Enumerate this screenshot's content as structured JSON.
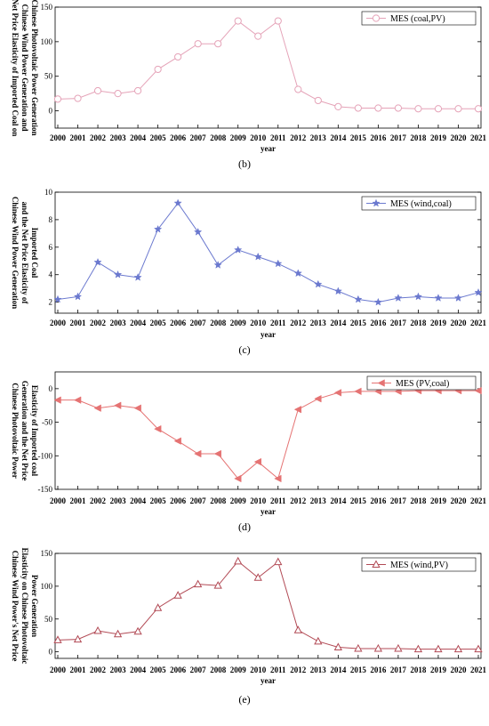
{
  "chart_data": [
    {
      "type": "line",
      "caption": "",
      "ylabel_lines": [
        "Net Price Elasticity of Imported Coal on",
        "Chinese Wind Power Generation and",
        "Chinese Photovoltaic Power Generation"
      ],
      "xlabel": "year",
      "x": [
        "2000",
        "2001",
        "2002",
        "2003",
        "2004",
        "2005",
        "2006",
        "2007",
        "2008",
        "2009",
        "2010",
        "2011",
        "2012",
        "2013",
        "2014",
        "2015",
        "2016",
        "2017",
        "2018",
        "2019",
        "2020",
        "2021"
      ],
      "ylim": [
        -25,
        150
      ],
      "yticks": [
        "0",
        "50",
        "100",
        "150"
      ],
      "legend_position": "top-right",
      "color": "#e5a3b8",
      "marker": "circle",
      "series": [
        {
          "name": "MES (coal,PV)",
          "values": [
            17,
            18,
            29,
            25,
            29,
            60,
            78,
            97,
            97,
            130,
            108,
            130,
            31,
            15,
            6,
            4,
            4,
            4,
            3,
            3,
            3,
            3
          ]
        }
      ]
    },
    {
      "type": "line",
      "caption": "(b)",
      "ylabel_lines": [
        "Chinese Wind Power Generation",
        "and the Net Price Elasticity of",
        "Imported Coal"
      ],
      "xlabel": "year",
      "x": [
        "2000",
        "2001",
        "2002",
        "2003",
        "2004",
        "2005",
        "2006",
        "2007",
        "2008",
        "2009",
        "2010",
        "2011",
        "2012",
        "2013",
        "2014",
        "2015",
        "2016",
        "2017",
        "2018",
        "2019",
        "2020",
        "2021"
      ],
      "ylim": [
        1.2,
        10
      ],
      "yticks": [
        "2",
        "4",
        "6",
        "8",
        "10"
      ],
      "legend_position": "top-right",
      "color": "#6b79cf",
      "marker": "star",
      "series": [
        {
          "name": "MES (wind,coal)",
          "values": [
            2.2,
            2.4,
            4.9,
            4.0,
            3.8,
            7.3,
            9.2,
            7.1,
            4.7,
            5.8,
            5.3,
            4.8,
            4.1,
            3.3,
            2.8,
            2.2,
            2.0,
            2.3,
            2.4,
            2.3,
            2.3,
            2.7
          ]
        }
      ]
    },
    {
      "type": "line",
      "caption": "(c)",
      "ylabel_lines": [
        "Chinese Photovoltaic Power",
        "Generation and the Net Price",
        "Elasticity of Imported coal"
      ],
      "xlabel": "year",
      "x": [
        "2000",
        "2001",
        "2002",
        "2003",
        "2004",
        "2005",
        "2006",
        "2007",
        "2008",
        "2009",
        "2010",
        "2011",
        "2012",
        "2013",
        "2014",
        "2015",
        "2016",
        "2017",
        "2018",
        "2019",
        "2020",
        "2021"
      ],
      "ylim": [
        -150,
        25
      ],
      "yticks": [
        "-150",
        "-100",
        "-50",
        "0"
      ],
      "legend_position": "top-right",
      "color": "#e57373",
      "marker": "triangle-left",
      "series": [
        {
          "name": "MES (PV,coal)",
          "values": [
            -17,
            -17,
            -29,
            -25,
            -29,
            -60,
            -78,
            -97,
            -97,
            -134,
            -109,
            -134,
            -31,
            -15,
            -6,
            -4,
            -4,
            -4,
            -3,
            -3,
            -3,
            -3
          ]
        }
      ]
    },
    {
      "type": "line",
      "caption": "(d)",
      "ylabel_lines": [
        "Chinese Wind Power's Net Price",
        "Elasticity on Chinese Photovoltaic",
        "Power Generation"
      ],
      "xlabel": "year",
      "x": [
        "2000",
        "2001",
        "2002",
        "2003",
        "2004",
        "2005",
        "2006",
        "2007",
        "2008",
        "2009",
        "2010",
        "2011",
        "2012",
        "2013",
        "2014",
        "2015",
        "2016",
        "2017",
        "2018",
        "2019",
        "2020",
        "2021"
      ],
      "ylim": [
        -10,
        150
      ],
      "yticks": [
        "0",
        "50",
        "100",
        "150"
      ],
      "legend_position": "top-right",
      "color": "#b24a55",
      "marker": "triangle",
      "series": [
        {
          "name": "MES (wind,PV)",
          "values": [
            18,
            19,
            32,
            27,
            31,
            67,
            86,
            103,
            101,
            138,
            113,
            137,
            33,
            16,
            7,
            5,
            5,
            5,
            4,
            4,
            4,
            4
          ]
        }
      ]
    }
  ],
  "final_caption": "(e)"
}
